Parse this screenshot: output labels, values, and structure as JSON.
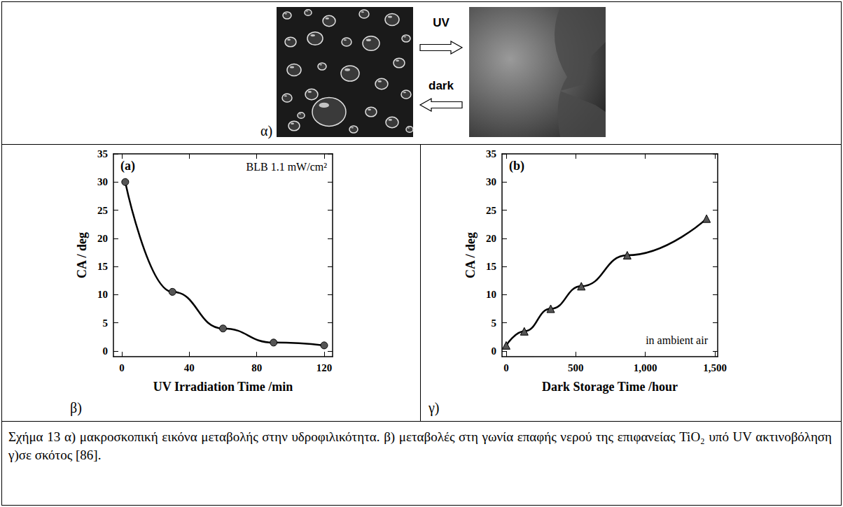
{
  "figure": {
    "panel_labels": [
      "α)",
      "β)",
      "γ)"
    ],
    "arrows": [
      {
        "label": "UV",
        "direction": "right"
      },
      {
        "label": "dark",
        "direction": "left"
      }
    ]
  },
  "chart_data": [
    {
      "type": "line",
      "x_label": "UV Irradiation Time /min",
      "y_label": "CA / deg",
      "annotations": [
        "(a)",
        "BLB 1.1 mW/cm²"
      ],
      "x": [
        2,
        30,
        60,
        90,
        120
      ],
      "values": [
        30,
        10.5,
        4,
        1.5,
        1
      ],
      "xlim": [
        -5,
        125
      ],
      "xticks": [
        0,
        40,
        80,
        120
      ],
      "ylim": [
        -1,
        35
      ],
      "yticks": [
        0,
        5,
        10,
        15,
        20,
        25,
        30,
        35
      ],
      "color": "#000000",
      "marker": "circle",
      "grid": false
    },
    {
      "type": "line",
      "x_label": "Dark Storage Time /hour",
      "y_label": "CA / deg",
      "annotations": [
        "(b)",
        "in ambient air"
      ],
      "x": [
        0,
        130,
        320,
        540,
        870,
        1440
      ],
      "values": [
        1,
        3.5,
        7.5,
        11.5,
        17,
        23.5
      ],
      "xlim": [
        -30,
        1520
      ],
      "xticks": [
        0,
        500,
        1000,
        1500
      ],
      "ylim": [
        -1,
        35
      ],
      "yticks": [
        0,
        5,
        10,
        15,
        20,
        25,
        30,
        35
      ],
      "color": "#000000",
      "marker": "triangle",
      "grid": false
    }
  ],
  "caption": "Σχήμα 13 α) μακροσκοπική εικόνα μεταβολής στην υδροφιλικότητα. β) μεταβολές στη γωνία επαφής νερού της επιφανείας TiO₂ υπό UV ακτινοβόληση γ)σε σκότος [86]."
}
